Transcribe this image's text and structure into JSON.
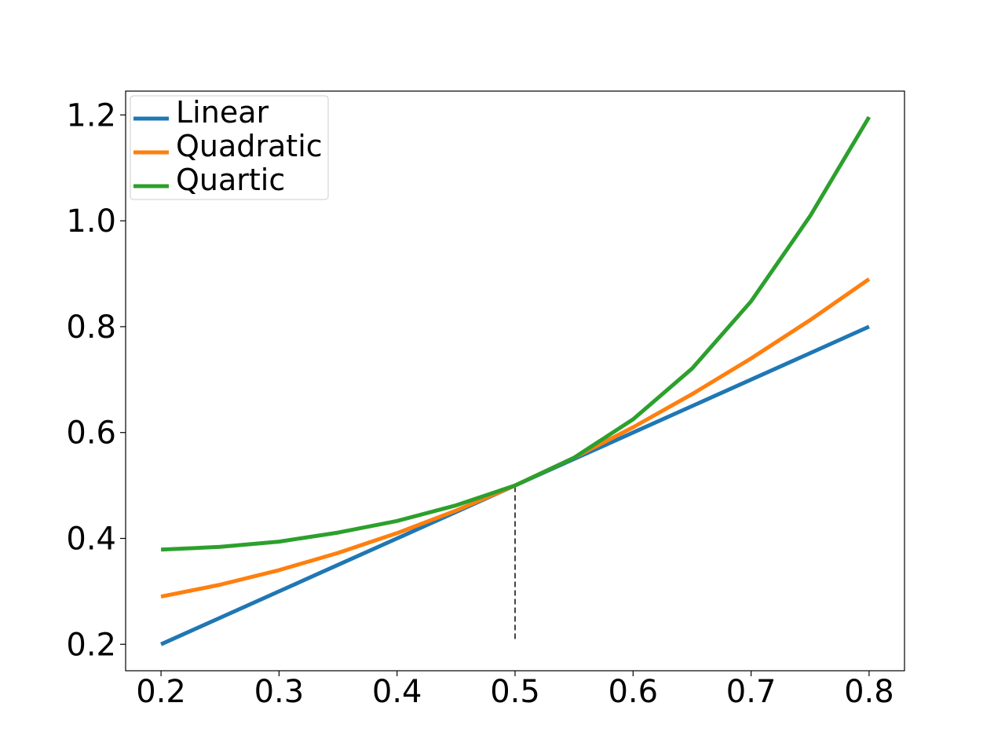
{
  "chart_data": {
    "type": "line",
    "title": "",
    "xlabel": "",
    "ylabel": "",
    "xlim": [
      0.17,
      0.83
    ],
    "ylim": [
      0.15,
      1.245
    ],
    "x_ticks": [
      "0.2",
      "0.3",
      "0.4",
      "0.5",
      "0.6",
      "0.7",
      "0.8"
    ],
    "y_ticks": [
      "0.2",
      "0.4",
      "0.6",
      "0.8",
      "1.0",
      "1.2"
    ],
    "grid": false,
    "legend_position": "upper-left",
    "series": [
      {
        "name": "Linear",
        "color": "#1f77b4",
        "x": [
          0.2,
          0.25,
          0.3,
          0.35,
          0.4,
          0.45,
          0.5,
          0.55,
          0.6,
          0.65,
          0.7,
          0.75,
          0.8
        ],
        "y": [
          0.2,
          0.25,
          0.3,
          0.35,
          0.4,
          0.45,
          0.5,
          0.55,
          0.6,
          0.65,
          0.7,
          0.75,
          0.8
        ]
      },
      {
        "name": "Quadratic",
        "color": "#ff7f0e",
        "x": [
          0.2,
          0.25,
          0.3,
          0.35,
          0.4,
          0.45,
          0.5,
          0.55,
          0.6,
          0.65,
          0.7,
          0.75,
          0.8
        ],
        "y": [
          0.29,
          0.3125,
          0.34,
          0.3725,
          0.41,
          0.4525,
          0.5,
          0.5525,
          0.61,
          0.6725,
          0.74,
          0.8125,
          0.89
        ]
      },
      {
        "name": "Quartic",
        "color": "#2ca02c",
        "x": [
          0.2,
          0.25,
          0.3,
          0.35,
          0.4,
          0.45,
          0.5,
          0.55,
          0.6,
          0.65,
          0.7,
          0.75,
          0.8
        ],
        "y": [
          0.379,
          0.384,
          0.394,
          0.411,
          0.433,
          0.4625,
          0.5,
          0.5525,
          0.625,
          0.721,
          0.848,
          1.009,
          1.196
        ]
      }
    ],
    "annotations": [
      {
        "type": "vertical-dashed-line",
        "x": 0.5,
        "y_from": 0.21,
        "y_to": 0.5
      }
    ]
  }
}
